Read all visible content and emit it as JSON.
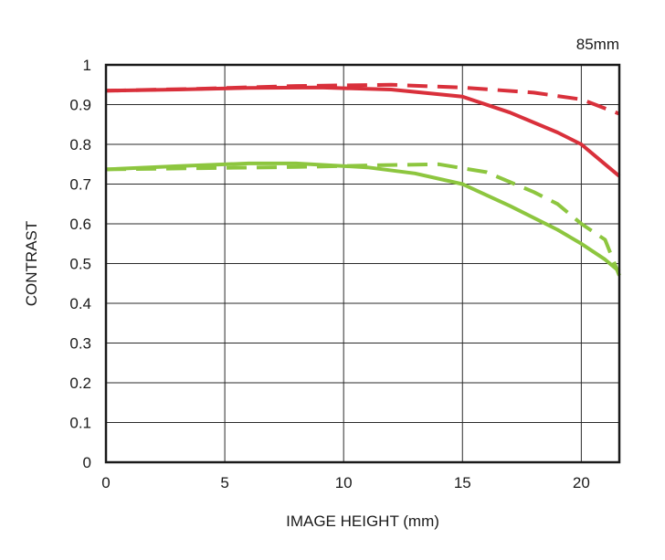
{
  "chart_data": {
    "type": "line",
    "title": "85mm",
    "xlabel": "IMAGE HEIGHT (mm)",
    "ylabel": "CONTRAST",
    "xlim": [
      0,
      21.6
    ],
    "ylim": [
      0,
      1
    ],
    "x_ticks": [
      "0",
      "5",
      "10",
      "15",
      "20"
    ],
    "x_tick_values": [
      0,
      5,
      10,
      15,
      20
    ],
    "y_ticks": [
      "0",
      "0.1",
      "0.2",
      "0.3",
      "0.4",
      "0.5",
      "0.6",
      "0.7",
      "0.8",
      "0.9",
      "1"
    ],
    "y_tick_values": [
      0,
      0.1,
      0.2,
      0.3,
      0.4,
      0.5,
      0.6,
      0.7,
      0.8,
      0.9,
      1
    ],
    "grid": true,
    "legend": "none",
    "series": [
      {
        "color": "#d9303b",
        "style": "solid",
        "points": [
          [
            0,
            0.935
          ],
          [
            3,
            0.938
          ],
          [
            6,
            0.942
          ],
          [
            9,
            0.943
          ],
          [
            12,
            0.938
          ],
          [
            15,
            0.92
          ],
          [
            17,
            0.88
          ],
          [
            19,
            0.83
          ],
          [
            20,
            0.8
          ],
          [
            21,
            0.75
          ],
          [
            21.6,
            0.72
          ]
        ]
      },
      {
        "color": "#d9303b",
        "style": "dashed",
        "points": [
          [
            0,
            0.935
          ],
          [
            4,
            0.94
          ],
          [
            8,
            0.947
          ],
          [
            12,
            0.95
          ],
          [
            15,
            0.943
          ],
          [
            18,
            0.93
          ],
          [
            20,
            0.913
          ],
          [
            21.6,
            0.877
          ]
        ]
      },
      {
        "color": "#8dc63f",
        "style": "solid",
        "points": [
          [
            0,
            0.737
          ],
          [
            3,
            0.745
          ],
          [
            6,
            0.752
          ],
          [
            8,
            0.752
          ],
          [
            11,
            0.742
          ],
          [
            13,
            0.727
          ],
          [
            15,
            0.7
          ],
          [
            17,
            0.645
          ],
          [
            19,
            0.585
          ],
          [
            20,
            0.55
          ],
          [
            21,
            0.51
          ],
          [
            21.6,
            0.48
          ]
        ]
      },
      {
        "color": "#8dc63f",
        "style": "dashed",
        "points": [
          [
            0,
            0.737
          ],
          [
            4,
            0.74
          ],
          [
            8,
            0.743
          ],
          [
            12,
            0.748
          ],
          [
            14,
            0.75
          ],
          [
            16,
            0.73
          ],
          [
            18,
            0.68
          ],
          [
            19,
            0.65
          ],
          [
            20,
            0.6
          ],
          [
            21,
            0.56
          ],
          [
            21.6,
            0.47
          ]
        ]
      }
    ]
  }
}
